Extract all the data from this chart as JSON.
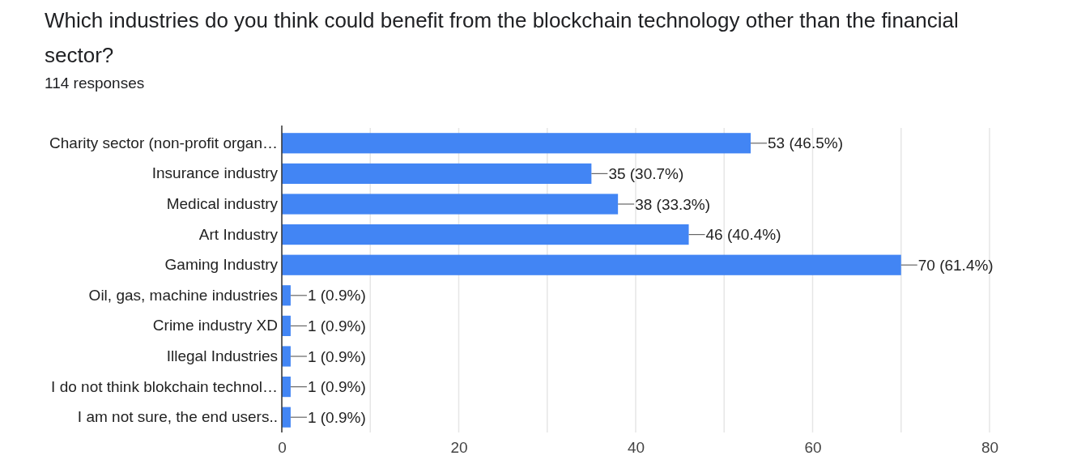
{
  "chart_data": {
    "type": "bar",
    "orientation": "horizontal",
    "title": "Which industries do you think could benefit from the blockchain technology other than the financial sector?",
    "subtitle": "114 responses",
    "categories": [
      "Charity sector (non-profit organ…",
      "Insurance industry",
      "Medical industry",
      "Art Industry",
      "Gaming Industry",
      "Oil, gas, machine industries",
      "Crime industry XD",
      "Illegal Industries",
      "I do not think blokchain technol…",
      "I am not sure, the end users.."
    ],
    "values": [
      53,
      35,
      38,
      46,
      70,
      1,
      1,
      1,
      1,
      1
    ],
    "value_labels": [
      "53 (46.5%)",
      "35 (30.7%)",
      "38 (33.3%)",
      "46 (40.4%)",
      "70 (61.4%)",
      "1 (0.9%)",
      "1 (0.9%)",
      "1 (0.9%)",
      "1 (0.9%)",
      "1 (0.9%)"
    ],
    "color": "#4285f4",
    "xlim": [
      0,
      80
    ],
    "xticks": [
      0,
      {
        "value": 10,
        "label": null
      },
      20,
      {
        "value": 30,
        "label": null
      },
      40,
      {
        "value": 50,
        "label": null
      },
      60,
      {
        "value": 70,
        "label": null
      },
      80
    ],
    "grid": "x"
  }
}
